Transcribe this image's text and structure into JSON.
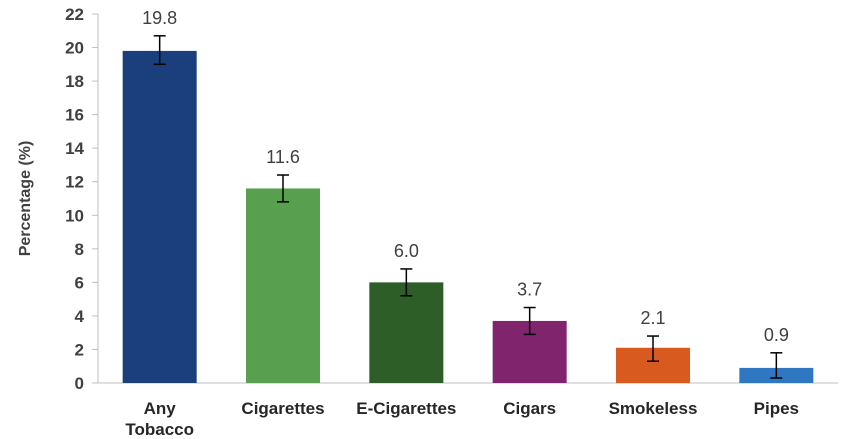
{
  "chart_data": {
    "type": "bar",
    "categories": [
      "Any Tobacco",
      "Cigarettes",
      "E-Cigarettes",
      "Cigars",
      "Smokeless",
      "Pipes"
    ],
    "values": [
      19.8,
      11.6,
      6.0,
      3.7,
      2.1,
      0.9
    ],
    "value_labels": [
      "19.8",
      "11.6",
      "6.0",
      "3.7",
      "2.1",
      "0.9"
    ],
    "error_bars": [
      {
        "low": 19.0,
        "high": 20.7
      },
      {
        "low": 10.8,
        "high": 12.4
      },
      {
        "low": 5.2,
        "high": 6.8
      },
      {
        "low": 2.9,
        "high": 4.5
      },
      {
        "low": 1.3,
        "high": 2.8
      },
      {
        "low": 0.3,
        "high": 1.8
      }
    ],
    "colors": [
      "#1a3f7c",
      "#58a04f",
      "#2e5e27",
      "#80246e",
      "#d95a1f",
      "#2f78c1"
    ],
    "title": "",
    "xlabel": "",
    "ylabel": "Percentage (%)",
    "ylim": [
      0,
      22
    ],
    "yticks": [
      0,
      2,
      4,
      6,
      8,
      10,
      12,
      14,
      16,
      18,
      20,
      22
    ],
    "grid": false,
    "legend": "none"
  }
}
